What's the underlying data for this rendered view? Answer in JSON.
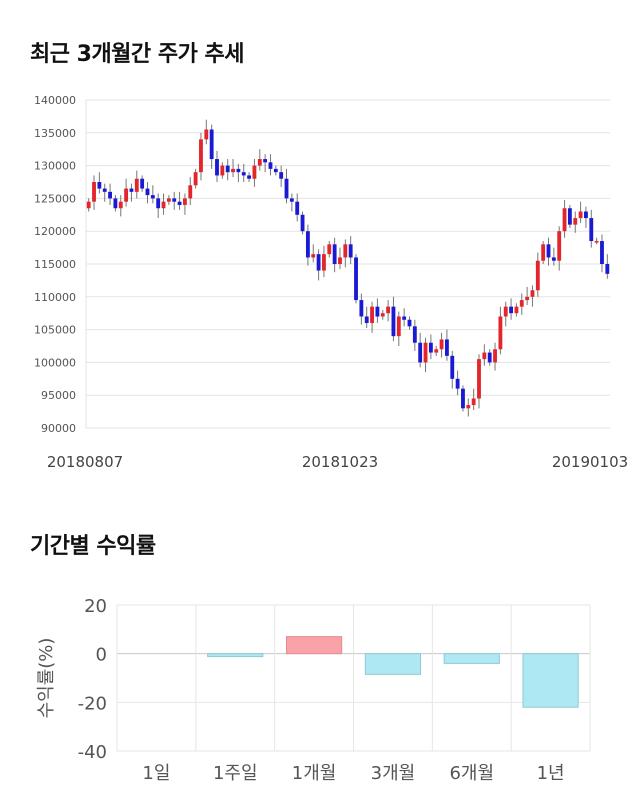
{
  "titles": {
    "price_trend": "최근 3개월간 주가 추세",
    "period_returns": "기간별 수익률"
  },
  "colors": {
    "up": "#e3262c",
    "down": "#1a1ad4",
    "bar_positive": "#f9a3a8",
    "bar_negative": "#aee8f2"
  },
  "chart_data": [
    {
      "type": "candlestick",
      "title": "최근 3개월간 주가 추세",
      "ylim": [
        90000,
        140000
      ],
      "yticks": [
        90000,
        95000,
        100000,
        105000,
        110000,
        115000,
        120000,
        125000,
        130000,
        135000,
        140000
      ],
      "x_labels": [
        "20180807",
        "20181023",
        "20190103"
      ],
      "grid": true,
      "closes": [
        124500,
        127500,
        126500,
        126000,
        125000,
        123500,
        124500,
        126500,
        126000,
        128000,
        126500,
        125500,
        125000,
        123500,
        124500,
        125000,
        124500,
        124000,
        125000,
        127000,
        129000,
        134000,
        135500,
        131000,
        128500,
        130000,
        129000,
        129500,
        129000,
        128500,
        128000,
        130000,
        131000,
        130500,
        129500,
        129000,
        128000,
        125000,
        124500,
        122500,
        120000,
        116000,
        116500,
        114000,
        116500,
        118000,
        115000,
        116000,
        118000,
        116000,
        109500,
        107000,
        106000,
        108500,
        107000,
        107500,
        108500,
        104000,
        107000,
        106500,
        105500,
        103000,
        100000,
        103000,
        101500,
        102000,
        103500,
        101000,
        97500,
        96000,
        93000,
        93500,
        94500,
        100500,
        101500,
        100000,
        102000,
        107000,
        108500,
        107500,
        108500,
        109500,
        110000,
        111000,
        115500,
        118000,
        116000,
        115500,
        120000,
        123500,
        121000,
        122000,
        123000,
        122000,
        118500,
        118500,
        115000,
        113500
      ]
    },
    {
      "type": "bar",
      "title": "기간별 수익률",
      "ylabel": "수익률(%)",
      "ylim": [
        -40,
        20
      ],
      "yticks": [
        20,
        0,
        -20,
        -40
      ],
      "categories": [
        "1일",
        "1주일",
        "1개월",
        "3개월",
        "6개월",
        "1년"
      ],
      "values": [
        0,
        -1.2,
        7,
        -8.5,
        -4,
        -22
      ],
      "grid": true
    }
  ]
}
